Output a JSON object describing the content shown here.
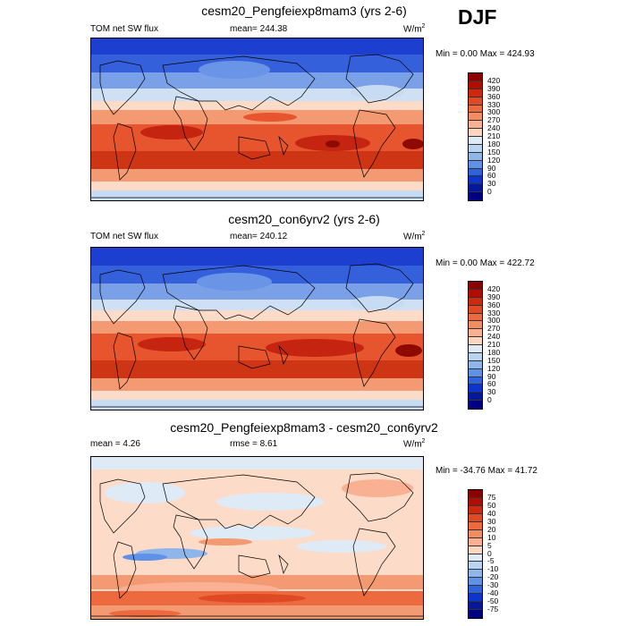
{
  "season": "DJF",
  "panels": [
    {
      "title": "cesm20_Pengfeiexp8mam3 (yrs 2-6)",
      "left_label": "TOM net SW flux",
      "center_label": "mean= 244.38",
      "units": "W/m",
      "units_sup": "2",
      "min_label": "Min =   0.00 Max = 424.93",
      "colorbar_labels": [
        "420",
        "390",
        "360",
        "330",
        "300",
        "270",
        "240",
        "210",
        "180",
        "150",
        "120",
        "90",
        "60",
        "30",
        "0"
      ],
      "colors": [
        "#8b0000",
        "#b00c00",
        "#cc2a0f",
        "#de4a24",
        "#ec6a3e",
        "#f48c62",
        "#f9b093",
        "#fcd6c1",
        "#deebf7",
        "#b9d4f0",
        "#8fb6ea",
        "#5f92e6",
        "#2e63dc",
        "#0b35cc",
        "#05189a",
        "#000080"
      ]
    },
    {
      "title": "cesm20_con6yrv2 (yrs 2-6)",
      "left_label": "TOM net SW flux",
      "center_label": "mean= 240.12",
      "units": "W/m",
      "units_sup": "2",
      "min_label": "Min =   0.00 Max = 422.72",
      "colorbar_labels": [
        "420",
        "390",
        "360",
        "330",
        "300",
        "270",
        "240",
        "210",
        "180",
        "150",
        "120",
        "90",
        "60",
        "30",
        "0"
      ],
      "colors": [
        "#8b0000",
        "#b00c00",
        "#cc2a0f",
        "#de4a24",
        "#ec6a3e",
        "#f48c62",
        "#f9b093",
        "#fcd6c1",
        "#deebf7",
        "#b9d4f0",
        "#8fb6ea",
        "#5f92e6",
        "#2e63dc",
        "#0b35cc",
        "#05189a",
        "#000080"
      ]
    },
    {
      "title": "cesm20_Pengfeiexp8mam3 - cesm20_con6yrv2",
      "left_label": "mean =   4.26",
      "center_label": "rmse =   8.61",
      "units": "W/m",
      "units_sup": "2",
      "min_label": "Min = -34.76 Max =  41.72",
      "colorbar_labels": [
        "75",
        "50",
        "40",
        "30",
        "20",
        "10",
        "5",
        "0",
        "-5",
        "-10",
        "-20",
        "-30",
        "-40",
        "-50",
        "-75"
      ],
      "colors": [
        "#8b0000",
        "#b00c00",
        "#cc2a0f",
        "#de4a24",
        "#ec6a3e",
        "#f48c62",
        "#f9b093",
        "#fcd6c1",
        "#deebf7",
        "#b9d4f0",
        "#8fb6ea",
        "#5f92e6",
        "#2e63dc",
        "#0b35cc",
        "#05189a",
        "#000080"
      ]
    }
  ],
  "field_colors": {
    "deep_blue": "#1c3fd0",
    "mid_blue": "#6a95e6",
    "light_blue": "#c7dcf3",
    "cream": "#fcdcc8",
    "salmon": "#f49a72",
    "orange": "#e6552d",
    "red": "#c52410",
    "dark_red": "#8e0a00"
  }
}
